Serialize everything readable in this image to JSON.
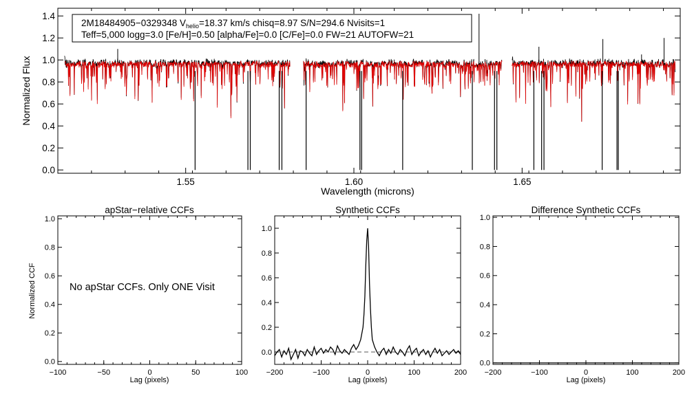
{
  "spectrum_plot": {
    "info_line1_prefix": "2M18484905−0329348  V",
    "info_line1_sub": "helio",
    "info_line1_suffix": "=18.37 km/s  chisq=8.97  S/N=294.6  Nvisits=1",
    "info_line2": "Teff=5,000 logg=3.0 [Fe/H]=0.50 [alpha/Fe]=0.0 [C/Fe]=0.0 FW=21 AUTOFW=21"
  },
  "ccf_panels": {
    "apstar_message": "No apStar CCFs.  Only ONE Visit"
  },
  "colors": {
    "observed": "#000000",
    "model": "#e00000",
    "axes": "#000000"
  },
  "chart_data": [
    {
      "id": "spectrum",
      "type": "line",
      "title": "",
      "xlabel": "Wavelength (microns)",
      "ylabel": "Normalized Flux",
      "xlim": [
        1.512,
        1.697
      ],
      "ylim": [
        -0.03,
        1.47
      ],
      "xticks": [
        1.55,
        1.6,
        1.65
      ],
      "xtick_labels": [
        "1.55",
        "1.60",
        "1.65"
      ],
      "yticks": [
        0.0,
        0.2,
        0.4,
        0.6,
        0.8,
        1.0,
        1.2,
        1.4
      ],
      "ytick_labels": [
        "0.0",
        "0.2",
        "0.4",
        "0.6",
        "0.8",
        "1.0",
        "1.2",
        "1.4"
      ],
      "chips": [
        [
          1.514,
          1.581
        ],
        [
          1.585,
          1.644
        ],
        [
          1.647,
          1.6955
        ]
      ],
      "continuum": 0.97,
      "series": [
        {
          "name": "",
          "color": "#000000",
          "role": "observed"
        },
        {
          "name": "",
          "color": "#e00000",
          "role": "model"
        }
      ],
      "deep_lines": [
        {
          "x": 1.5528,
          "y": 0.0
        },
        {
          "x": 1.5685,
          "y": 0.0
        },
        {
          "x": 1.5692,
          "y": 0.0
        },
        {
          "x": 1.5778,
          "y": 0.0
        },
        {
          "x": 1.5786,
          "y": 0.0
        },
        {
          "x": 1.5858,
          "y": 0.0
        },
        {
          "x": 1.6018,
          "y": 0.0
        },
        {
          "x": 1.6023,
          "y": 0.0
        },
        {
          "x": 1.6145,
          "y": 0.0
        },
        {
          "x": 1.6352,
          "y": 0.0
        },
        {
          "x": 1.6418,
          "y": 0.0
        },
        {
          "x": 1.6425,
          "y": 0.0
        },
        {
          "x": 1.6535,
          "y": 0.0
        },
        {
          "x": 1.6558,
          "y": 0.0
        },
        {
          "x": 1.6565,
          "y": 0.0
        },
        {
          "x": 1.6738,
          "y": 0.0
        },
        {
          "x": 1.6782,
          "y": 0.0
        },
        {
          "x": 1.6786,
          "y": 0.0
        }
      ],
      "spikes": [
        {
          "x": 1.5298,
          "y": 1.1
        },
        {
          "x": 1.6372,
          "y": 1.42
        },
        {
          "x": 1.674,
          "y": 1.19
        },
        {
          "x": 1.655,
          "y": 1.12
        },
        {
          "x": 1.6922,
          "y": 1.2
        },
        {
          "x": 1.6855,
          "y": 1.05
        }
      ]
    },
    {
      "id": "apstar_ccf",
      "type": "line",
      "title": "apStar−relative CCFs",
      "xlabel": "Lag (pixels)",
      "ylabel": "Normalized CCF",
      "xlim": [
        -100,
        100
      ],
      "ylim": [
        -0.02,
        1.02
      ],
      "xticks": [
        -100,
        -50,
        0,
        50,
        100
      ],
      "xtick_labels": [
        "−100",
        "−50",
        "0",
        "50",
        "100"
      ],
      "yticks": [
        0.0,
        0.2,
        0.4,
        0.6,
        0.8,
        1.0
      ],
      "ytick_labels": [
        "0.0",
        "0.2",
        "0.4",
        "0.6",
        "0.8",
        "1.0"
      ],
      "series": []
    },
    {
      "id": "synthetic_ccf",
      "type": "line",
      "title": "Synthetic CCFs",
      "xlabel": "Lag (pixels)",
      "ylabel": "",
      "xlim": [
        -200,
        200
      ],
      "ylim": [
        -0.1,
        1.1
      ],
      "xticks": [
        -200,
        -100,
        0,
        100,
        200
      ],
      "xtick_labels": [
        "−200",
        "−100",
        "0",
        "100",
        "200"
      ],
      "yticks": [
        0.0,
        0.2,
        0.4,
        0.6,
        0.8,
        1.0
      ],
      "ytick_labels": [
        "0.0",
        "0.2",
        "0.4",
        "0.6",
        "0.8",
        "1.0"
      ],
      "reference_line": 0.0,
      "series": [
        {
          "name": "",
          "color": "#000000",
          "x": [
            -200,
            -195,
            -190,
            -185,
            -180,
            -175,
            -170,
            -165,
            -160,
            -155,
            -150,
            -145,
            -140,
            -135,
            -130,
            -125,
            -120,
            -115,
            -110,
            -105,
            -100,
            -95,
            -90,
            -85,
            -80,
            -75,
            -70,
            -65,
            -60,
            -55,
            -50,
            -45,
            -40,
            -35,
            -30,
            -25,
            -20,
            -15,
            -10,
            -8,
            -6,
            -4,
            -2,
            0,
            2,
            4,
            6,
            8,
            10,
            15,
            20,
            25,
            30,
            35,
            40,
            45,
            50,
            55,
            60,
            65,
            70,
            75,
            80,
            85,
            90,
            95,
            100,
            105,
            110,
            115,
            120,
            125,
            130,
            135,
            140,
            145,
            150,
            155,
            160,
            165,
            170,
            175,
            180,
            185,
            190,
            195,
            200
          ],
          "y": [
            -0.03,
            0.0,
            0.02,
            -0.04,
            0.01,
            -0.02,
            0.03,
            -0.06,
            -0.02,
            0.02,
            -0.05,
            0.01,
            0.0,
            -0.03,
            0.02,
            -0.01,
            -0.03,
            0.04,
            -0.02,
            0.01,
            0.03,
            -0.01,
            0.02,
            0.0,
            0.04,
            0.02,
            -0.02,
            0.05,
            0.01,
            -0.01,
            0.02,
            0.0,
            -0.02,
            0.03,
            0.06,
            0.02,
            0.05,
            0.1,
            0.2,
            0.3,
            0.45,
            0.7,
            0.9,
            1.0,
            0.85,
            0.55,
            0.35,
            0.2,
            0.1,
            0.04,
            0.0,
            -0.03,
            0.01,
            0.03,
            -0.02,
            0.02,
            -0.01,
            0.04,
            0.0,
            -0.02,
            0.02,
            0.0,
            -0.03,
            0.02,
            0.05,
            -0.02,
            0.01,
            0.03,
            -0.03,
            0.0,
            0.02,
            -0.02,
            0.01,
            -0.04,
            0.0,
            0.03,
            -0.01,
            0.02,
            -0.03,
            -0.01,
            0.01,
            -0.02,
            0.0,
            0.02,
            -0.01,
            0.01,
            -0.02
          ]
        }
      ]
    },
    {
      "id": "difference_ccf",
      "type": "line",
      "title": "Difference Synthetic CCFs",
      "xlabel": "Lag (pixels)",
      "ylabel": "",
      "xlim": [
        -200,
        200
      ],
      "ylim": [
        -0.01,
        1.01
      ],
      "xticks": [
        -200,
        -100,
        0,
        100,
        200
      ],
      "xtick_labels": [
        "−200",
        "−100",
        "0",
        "100",
        "200"
      ],
      "yticks": [
        0.0,
        0.2,
        0.4,
        0.6,
        0.8,
        1.0
      ],
      "ytick_labels": [
        "0.0",
        "0.2",
        "0.4",
        "0.6",
        "0.8",
        "1.0"
      ],
      "series": [
        {
          "name": "",
          "color": "#000000",
          "x": [
            -200,
            200
          ],
          "y": [
            0.0,
            0.0
          ]
        }
      ]
    }
  ]
}
